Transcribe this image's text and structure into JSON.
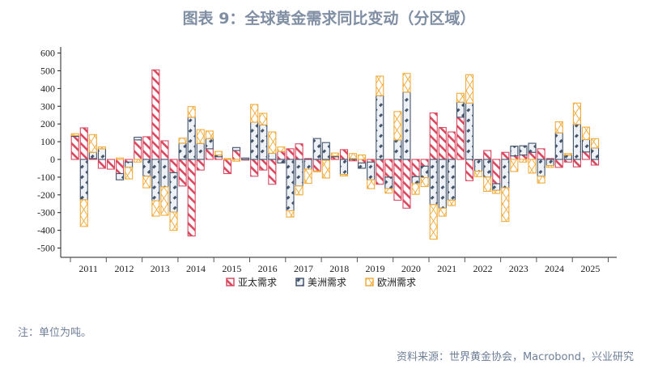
{
  "title": "图表 9：全球黄金需求同比变动（分区域）",
  "note": "注：单位为吨。",
  "source": "资料来源：世界黄金协会，Macrobond，兴业研究",
  "chart_data": {
    "type": "bar",
    "stacked": true,
    "title": "图表 9：全球黄金需求同比变动（分区域）",
    "xlabel": "",
    "ylabel": "",
    "ylim": [
      -500,
      600
    ],
    "yticks": [
      600,
      500,
      400,
      300,
      200,
      100,
      0,
      -100,
      -200,
      -300,
      -400,
      -500
    ],
    "year_labels": [
      "2011",
      "2012",
      "2013",
      "2014",
      "2015",
      "2016",
      "2017",
      "2018",
      "2019",
      "2020",
      "2021",
      "2022",
      "2023",
      "2024",
      "2025"
    ],
    "categories": [
      "2011Q1",
      "2011Q2",
      "2011Q3",
      "2011Q4",
      "2012Q1",
      "2012Q2",
      "2012Q3",
      "2012Q4",
      "2013Q1",
      "2013Q2",
      "2013Q3",
      "2013Q4",
      "2014Q1",
      "2014Q2",
      "2014Q3",
      "2014Q4",
      "2015Q1",
      "2015Q2",
      "2015Q3",
      "2015Q4",
      "2016Q1",
      "2016Q2",
      "2016Q3",
      "2016Q4",
      "2017Q1",
      "2017Q2",
      "2017Q3",
      "2017Q4",
      "2018Q1",
      "2018Q2",
      "2018Q3",
      "2018Q4",
      "2019Q1",
      "2019Q2",
      "2019Q3",
      "2019Q4",
      "2020Q1",
      "2020Q2",
      "2020Q3",
      "2020Q4",
      "2021Q1",
      "2021Q2",
      "2021Q3",
      "2021Q4",
      "2022Q1",
      "2022Q2",
      "2022Q3",
      "2022Q4",
      "2023Q1",
      "2023Q2",
      "2023Q3",
      "2023Q4",
      "2024Q1",
      "2024Q2",
      "2024Q3",
      "2024Q4",
      "2025Q1",
      "2025Q2",
      "2025Q3"
    ],
    "series": [
      {
        "name": "亚太需求",
        "color": "#d9485f",
        "values": [
          130,
          178,
          5,
          -50,
          -55,
          -80,
          -15,
          110,
          128,
          505,
          105,
          -75,
          -150,
          -432,
          -60,
          60,
          15,
          -80,
          50,
          -3,
          -95,
          -60,
          -140,
          45,
          60,
          88,
          5,
          -65,
          -5,
          15,
          55,
          -8,
          -20,
          -15,
          -140,
          -100,
          -230,
          -275,
          -97,
          -38,
          262,
          180,
          155,
          238,
          -120,
          -2,
          50,
          -137,
          40,
          20,
          25,
          40,
          60,
          5,
          -45,
          -15,
          -42,
          42,
          -32
        ]
      },
      {
        "name": "美洲需求",
        "color": "#44546a",
        "values": [
          5,
          -228,
          35,
          60,
          0,
          -35,
          -30,
          15,
          -95,
          -233,
          -155,
          -222,
          92,
          238,
          90,
          58,
          10,
          0,
          17,
          8,
          210,
          195,
          35,
          -20,
          -290,
          -150,
          -55,
          118,
          95,
          5,
          -85,
          5,
          -30,
          -100,
          360,
          -65,
          110,
          380,
          -40,
          -65,
          -255,
          -275,
          -230,
          85,
          318,
          -65,
          -100,
          -38,
          -160,
          55,
          52,
          51,
          -95,
          -35,
          150,
          25,
          198,
          70,
          65
        ]
      },
      {
        "name": "欧洲需求",
        "color": "#f0ac3c",
        "values": [
          10,
          -150,
          100,
          10,
          0,
          8,
          -65,
          -15,
          -65,
          -87,
          -160,
          -103,
          28,
          60,
          78,
          42,
          20,
          5,
          -10,
          0,
          100,
          65,
          120,
          25,
          -35,
          -50,
          -80,
          -5,
          -100,
          16,
          -8,
          28,
          25,
          -50,
          110,
          -25,
          160,
          105,
          -60,
          -50,
          -195,
          -45,
          -30,
          50,
          160,
          -30,
          -80,
          -17,
          -190,
          -68,
          -15,
          -77,
          -38,
          -10,
          62,
          8,
          120,
          70,
          52
        ]
      }
    ],
    "legend": "bottom",
    "grid": false
  }
}
